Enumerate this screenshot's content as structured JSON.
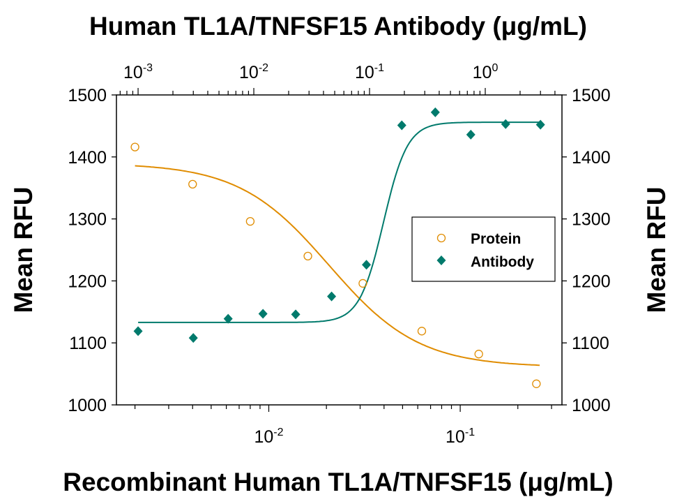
{
  "chart_data": {
    "type": "scatter",
    "title_top": "Human TL1A/TNFSF15 Antibody (μg/mL)",
    "xlabel": "Recombinant Human TL1A/TNFSF15 (μg/mL)",
    "ylabel_left": "Mean RFU",
    "ylabel_right": "Mean RFU",
    "ylim": [
      1000,
      1500
    ],
    "yticks": [
      1000,
      1100,
      1200,
      1300,
      1400,
      1500
    ],
    "x_bottom": {
      "scale": "log",
      "range": [
        0.0016,
        0.34
      ],
      "ticks": [
        {
          "base": "10",
          "exp": "-2",
          "value": 0.01
        },
        {
          "base": "10",
          "exp": "-1",
          "value": 0.1
        }
      ]
    },
    "x_top": {
      "scale": "log",
      "range": [
        0.00065,
        4.6
      ],
      "ticks": [
        {
          "base": "10",
          "exp": "-3",
          "value": 0.001
        },
        {
          "base": "10",
          "exp": "-2",
          "value": 0.01
        },
        {
          "base": "10",
          "exp": "-1",
          "value": 0.1
        },
        {
          "base": "10",
          "exp": "0",
          "value": 1
        }
      ]
    },
    "grid": false,
    "legend_placement": "center-right",
    "series": [
      {
        "name": "Protein",
        "axis": "bottom",
        "marker": "open-circle",
        "color": "#E08C00",
        "x": [
          0.002,
          0.004,
          0.008,
          0.016,
          0.031,
          0.063,
          0.125,
          0.25
        ],
        "y": [
          1416,
          1356,
          1296,
          1240,
          1196,
          1119,
          1082,
          1034
        ],
        "fit": {
          "model": "4PL",
          "bottom": 1061,
          "top": 1390,
          "ec50": 0.0206,
          "hill": -1.85,
          "xrange": [
            0.002,
            0.26
          ]
        }
      },
      {
        "name": "Antibody",
        "axis": "top",
        "marker": "filled-diamond",
        "color": "#007A6C",
        "x": [
          0.001,
          0.003,
          0.006,
          0.012,
          0.023,
          0.047,
          0.094,
          0.19,
          0.37,
          0.75,
          1.5,
          3.0
        ],
        "y": [
          1119,
          1108,
          1139,
          1147,
          1146,
          1175,
          1226,
          1451,
          1472,
          1436,
          1453,
          1452
        ],
        "fit": {
          "model": "4PL",
          "bottom": 1133,
          "top": 1456,
          "ec50": 0.132,
          "hill": 4.2,
          "xrange": [
            0.001,
            3.0
          ]
        }
      }
    ]
  }
}
